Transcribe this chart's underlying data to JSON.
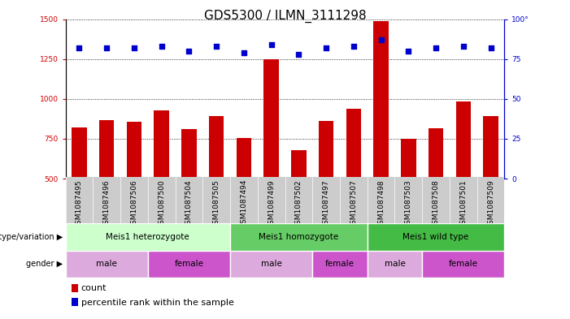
{
  "title": "GDS5300 / ILMN_3111298",
  "samples": [
    "GSM1087495",
    "GSM1087496",
    "GSM1087506",
    "GSM1087500",
    "GSM1087504",
    "GSM1087505",
    "GSM1087494",
    "GSM1087499",
    "GSM1087502",
    "GSM1087497",
    "GSM1087507",
    "GSM1087498",
    "GSM1087503",
    "GSM1087508",
    "GSM1087501",
    "GSM1087509"
  ],
  "counts": [
    820,
    865,
    855,
    930,
    810,
    890,
    755,
    1250,
    680,
    860,
    940,
    1490,
    750,
    815,
    985,
    890
  ],
  "percentiles": [
    82,
    82,
    82,
    83,
    80,
    83,
    79,
    84,
    78,
    82,
    83,
    87,
    80,
    82,
    83,
    82
  ],
  "ylim_left": [
    500,
    1500
  ],
  "ylim_right": [
    0,
    100
  ],
  "yticks_left": [
    500,
    750,
    1000,
    1250,
    1500
  ],
  "yticks_right": [
    0,
    25,
    50,
    75,
    100
  ],
  "bar_color": "#cc0000",
  "dot_color": "#0000cc",
  "genotype_groups": [
    {
      "label": "Meis1 heterozygote",
      "start": 0,
      "end": 5,
      "color": "#ccffcc"
    },
    {
      "label": "Meis1 homozygote",
      "start": 6,
      "end": 10,
      "color": "#66cc66"
    },
    {
      "label": "Meis1 wild type",
      "start": 11,
      "end": 15,
      "color": "#44bb44"
    }
  ],
  "gender_groups": [
    {
      "label": "male",
      "start": 0,
      "end": 2,
      "color": "#ddaadd"
    },
    {
      "label": "female",
      "start": 3,
      "end": 5,
      "color": "#cc55cc"
    },
    {
      "label": "male",
      "start": 6,
      "end": 8,
      "color": "#ddaadd"
    },
    {
      "label": "female",
      "start": 9,
      "end": 10,
      "color": "#cc55cc"
    },
    {
      "label": "male",
      "start": 11,
      "end": 12,
      "color": "#ddaadd"
    },
    {
      "label": "female",
      "start": 13,
      "end": 15,
      "color": "#cc55cc"
    }
  ],
  "legend_count_label": "count",
  "legend_percentile_label": "percentile rank within the sample",
  "genotype_label": "genotype/variation",
  "gender_label": "gender",
  "background_color": "#ffffff",
  "title_fontsize": 11,
  "tick_fontsize": 6.5,
  "label_fontsize": 7.5,
  "xtick_bg": "#cccccc"
}
